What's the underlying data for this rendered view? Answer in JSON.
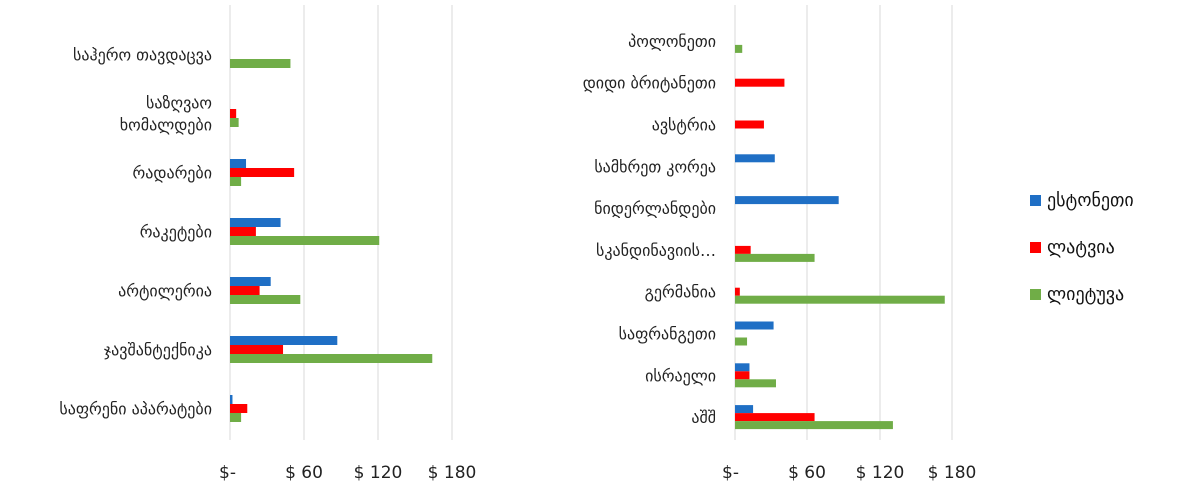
{
  "chart_data": [
    {
      "type": "bar",
      "orientation": "horizontal",
      "categories": [
        "საჰერო თავდაცვა",
        "საზღვაო ხომალდები",
        "რადარები",
        "რაკეტები",
        "არტილერია",
        "ჯავშანტექნიკა",
        "საფრენი აპარატები"
      ],
      "category_lines": [
        [
          "საჰერო თავდაცვა"
        ],
        [
          "საზღვაო",
          "ხომალდები"
        ],
        [
          "რადარები"
        ],
        [
          "რაკეტები"
        ],
        [
          "არტილერია"
        ],
        [
          "ჯავშანტექნიკა"
        ],
        [
          "საფრენი აპარატები"
        ]
      ],
      "series": [
        {
          "name": "ესტონეთი",
          "values": [
            0,
            0,
            13,
            41,
            33,
            87,
            2
          ]
        },
        {
          "name": "ლატვია",
          "values": [
            0,
            5,
            52,
            21,
            24,
            43,
            14
          ]
        },
        {
          "name": "ლიეტუვა",
          "values": [
            49,
            7,
            9,
            121,
            57,
            164,
            9
          ]
        }
      ],
      "xlim": [
        0,
        180
      ],
      "xticks": [
        "$-",
        "$ 60",
        "$ 120",
        "$ 180"
      ],
      "grid": true
    },
    {
      "type": "bar",
      "orientation": "horizontal",
      "categories": [
        "პოლონეთი",
        "დიდი ბრიტანეთი",
        "ავსტრია",
        "სამხრეთ კორეა",
        "ნიდერლანდები",
        "სკანდინავიის…",
        "გერმანია",
        "საფრანგეთი",
        "ისრაელი",
        "აშშ"
      ],
      "category_lines": [
        [
          "პოლონეთი"
        ],
        [
          "დიდი ბრიტანეთი"
        ],
        [
          "ავსტრია"
        ],
        [
          "სამხრეთ კორეა"
        ],
        [
          "ნიდერლანდები"
        ],
        [
          "სკანდინავიის…"
        ],
        [
          "გერმანია"
        ],
        [
          "საფრანგეთი"
        ],
        [
          "ისრაელი"
        ],
        [
          "აშშ"
        ]
      ],
      "series": [
        {
          "name": "ესტონეთი",
          "values": [
            0,
            0,
            0,
            33,
            86,
            0,
            0,
            32,
            12,
            15
          ]
        },
        {
          "name": "ლატვია",
          "values": [
            0,
            41,
            24,
            0,
            0,
            13,
            4,
            0,
            12,
            66
          ]
        },
        {
          "name": "ლიეტუვა",
          "values": [
            6,
            0,
            0,
            0,
            0,
            66,
            174,
            10,
            34,
            131
          ]
        }
      ],
      "xlim": [
        0,
        180
      ],
      "xticks": [
        "$-",
        "$ 60",
        "$ 120",
        "$ 180"
      ],
      "grid": true
    }
  ],
  "legend": {
    "placement": "right",
    "items": [
      {
        "label": "ესტონეთი",
        "color": "#1F6FC5"
      },
      {
        "label": "ლატვია",
        "color": "#FF0000"
      },
      {
        "label": "ლიეტუვა",
        "color": "#70AD47"
      }
    ]
  }
}
